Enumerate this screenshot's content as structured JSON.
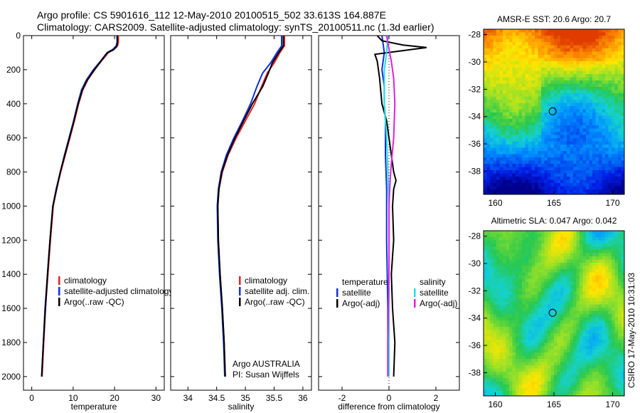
{
  "header": {
    "title_line1": "Argo profile: CS 5901616_112 12-May-2010 20100515_502 33.613S 164.887E",
    "title_line2": "Climatology: CARS2009. Satellite-adjusted climatology: synTS_20100511.nc (1.3d earlier)"
  },
  "side_label": "CSIRO 17-May-2010 10:31:03",
  "colors": {
    "climatology": "#e82020",
    "satellite": "#1030e0",
    "argo": "#000000",
    "salinity_satellite": "#20e0e0",
    "salinity_argo": "#e020e0"
  },
  "chart_data": [
    {
      "type": "line",
      "xlabel": "temperature",
      "xlim": [
        -2,
        32
      ],
      "xticks": [
        0,
        10,
        20,
        30
      ],
      "ylim": [
        2080,
        0
      ],
      "yticks": [
        0,
        200,
        400,
        600,
        800,
        1000,
        1200,
        1400,
        1600,
        1800,
        2000
      ],
      "legend": {
        "placement": "lower-left",
        "entries": [
          "climatology",
          "satellite-adjusted climatology",
          "Argo(..raw -QC)"
        ]
      },
      "series": [
        {
          "name": "climatology",
          "color": "#e82020",
          "points": [
            [
              20.9,
              0
            ],
            [
              20.9,
              40
            ],
            [
              20.7,
              60
            ],
            [
              19.9,
              80
            ],
            [
              18.5,
              100
            ],
            [
              16.8,
              150
            ],
            [
              15.2,
              200
            ],
            [
              13.5,
              260
            ],
            [
              12.3,
              320
            ],
            [
              11.3,
              400
            ],
            [
              10.3,
              500
            ],
            [
              9.2,
              600
            ],
            [
              8.1,
              700
            ],
            [
              7.0,
              800
            ],
            [
              6.0,
              900
            ],
            [
              5.2,
              1000
            ],
            [
              4.5,
              1200
            ],
            [
              3.9,
              1400
            ],
            [
              3.3,
              1600
            ],
            [
              2.9,
              1800
            ],
            [
              2.5,
              2000
            ]
          ]
        },
        {
          "name": "satellite-adjusted climatology",
          "color": "#1030e0",
          "points": [
            [
              20.6,
              0
            ],
            [
              20.6,
              40
            ],
            [
              20.4,
              60
            ],
            [
              19.6,
              80
            ],
            [
              18.2,
              100
            ],
            [
              16.6,
              150
            ],
            [
              14.9,
              200
            ],
            [
              13.2,
              260
            ],
            [
              12.0,
              320
            ],
            [
              11.1,
              400
            ],
            [
              10.1,
              500
            ],
            [
              9.0,
              600
            ],
            [
              7.9,
              700
            ],
            [
              6.9,
              800
            ],
            [
              5.9,
              900
            ],
            [
              5.1,
              1000
            ],
            [
              4.4,
              1200
            ],
            [
              3.8,
              1400
            ],
            [
              3.2,
              1600
            ],
            [
              2.8,
              1800
            ],
            [
              2.4,
              2000
            ]
          ]
        },
        {
          "name": "Argo(..raw -QC)",
          "color": "#000000",
          "points": [
            [
              20.7,
              0
            ],
            [
              20.7,
              40
            ],
            [
              20.5,
              65
            ],
            [
              19.6,
              85
            ],
            [
              18.3,
              100
            ],
            [
              16.7,
              150
            ],
            [
              15.1,
              200
            ],
            [
              13.4,
              260
            ],
            [
              12.2,
              320
            ],
            [
              11.2,
              400
            ],
            [
              10.2,
              500
            ],
            [
              9.1,
              600
            ],
            [
              8.0,
              700
            ],
            [
              6.9,
              800
            ],
            [
              6.0,
              900
            ],
            [
              5.1,
              1000
            ],
            [
              4.4,
              1200
            ],
            [
              3.8,
              1400
            ],
            [
              3.3,
              1600
            ],
            [
              2.8,
              1800
            ],
            [
              2.4,
              2000
            ]
          ]
        }
      ]
    },
    {
      "type": "line",
      "xlabel": "salinity",
      "xlim": [
        33.7,
        36.15
      ],
      "xticks": [
        34,
        34.5,
        35,
        35.5,
        36
      ],
      "ylim": [
        2080,
        0
      ],
      "legend": {
        "placement": "lower-right",
        "entries": [
          "climatology",
          "satellite adj. clim.",
          "Argo(..raw -QC)"
        ]
      },
      "annotation": [
        "Argo AUSTRALIA",
        "PI: Susan Wijffels"
      ],
      "series": [
        {
          "name": "climatology",
          "color": "#e82020",
          "points": [
            [
              35.68,
              0
            ],
            [
              35.68,
              60
            ],
            [
              35.6,
              100
            ],
            [
              35.5,
              160
            ],
            [
              35.38,
              220
            ],
            [
              35.28,
              300
            ],
            [
              35.16,
              400
            ],
            [
              35.0,
              500
            ],
            [
              34.84,
              600
            ],
            [
              34.7,
              700
            ],
            [
              34.6,
              800
            ],
            [
              34.54,
              900
            ],
            [
              34.52,
              1000
            ],
            [
              34.53,
              1200
            ],
            [
              34.56,
              1400
            ],
            [
              34.6,
              1600
            ],
            [
              34.63,
              1800
            ],
            [
              34.65,
              2000
            ]
          ]
        },
        {
          "name": "satellite adj. clim.",
          "color": "#1030e0",
          "points": [
            [
              35.63,
              0
            ],
            [
              35.63,
              60
            ],
            [
              35.55,
              100
            ],
            [
              35.44,
              160
            ],
            [
              35.3,
              220
            ],
            [
              35.2,
              300
            ],
            [
              35.09,
              400
            ],
            [
              34.95,
              500
            ],
            [
              34.8,
              600
            ],
            [
              34.67,
              700
            ],
            [
              34.58,
              800
            ],
            [
              34.53,
              900
            ],
            [
              34.51,
              1000
            ],
            [
              34.52,
              1200
            ],
            [
              34.55,
              1400
            ],
            [
              34.59,
              1600
            ],
            [
              34.62,
              1800
            ],
            [
              34.64,
              2000
            ]
          ]
        },
        {
          "name": "Argo(..raw -QC)",
          "color": "#000000",
          "points": [
            [
              35.66,
              0
            ],
            [
              35.66,
              60
            ],
            [
              35.58,
              100
            ],
            [
              35.47,
              160
            ],
            [
              35.4,
              220
            ],
            [
              35.3,
              300
            ],
            [
              35.12,
              400
            ],
            [
              34.97,
              500
            ],
            [
              34.82,
              600
            ],
            [
              34.69,
              700
            ],
            [
              34.59,
              800
            ],
            [
              34.54,
              900
            ],
            [
              34.52,
              1000
            ],
            [
              34.53,
              1200
            ],
            [
              34.56,
              1400
            ],
            [
              34.6,
              1600
            ],
            [
              34.63,
              1800
            ],
            [
              34.65,
              2000
            ]
          ]
        }
      ]
    },
    {
      "type": "line",
      "xlabel": "difference from climatology",
      "xlim": [
        -3.0,
        3.0
      ],
      "xticks": [
        -2,
        0,
        2
      ],
      "ylim": [
        2080,
        0
      ],
      "legend": {
        "placement": "lower-center",
        "groups": [
          {
            "heading": "temperature",
            "entries": [
              "satellite",
              "Argo(-adj)"
            ]
          },
          {
            "heading": "salinity",
            "entries": [
              "satellite",
              "Argo(-adj)"
            ]
          }
        ]
      },
      "series": [
        {
          "name": "temperature satellite",
          "color": "#1030e0",
          "points": [
            [
              -0.3,
              0
            ],
            [
              -0.25,
              50
            ],
            [
              -0.2,
              100
            ],
            [
              -0.3,
              200
            ],
            [
              -0.2,
              300
            ],
            [
              -0.2,
              400
            ],
            [
              -0.15,
              500
            ],
            [
              -0.15,
              700
            ],
            [
              -0.1,
              900
            ],
            [
              -0.1,
              1200
            ],
            [
              -0.05,
              1600
            ],
            [
              -0.05,
              2000
            ]
          ]
        },
        {
          "name": "temperature Argo(-adj)",
          "color": "#000000",
          "points": [
            [
              -0.5,
              0
            ],
            [
              -0.3,
              30
            ],
            [
              0.6,
              55
            ],
            [
              1.6,
              70
            ],
            [
              0.5,
              90
            ],
            [
              -0.6,
              110
            ],
            [
              -0.5,
              150
            ],
            [
              -0.4,
              250
            ],
            [
              -0.3,
              400
            ],
            [
              -0.1,
              500
            ],
            [
              0.0,
              600
            ],
            [
              0.1,
              700
            ],
            [
              0.2,
              800
            ],
            [
              0.3,
              850
            ],
            [
              0.2,
              900
            ],
            [
              0.15,
              1000
            ],
            [
              0.2,
              1200
            ],
            [
              0.1,
              1400
            ],
            [
              0.15,
              1600
            ],
            [
              0.25,
              1800
            ],
            [
              0.2,
              2000
            ]
          ]
        },
        {
          "name": "salinity satellite",
          "color": "#20e0e0",
          "points": [
            [
              -0.05,
              0
            ],
            [
              -0.1,
              100
            ],
            [
              -0.2,
              200
            ],
            [
              -0.2,
              400
            ],
            [
              -0.1,
              600
            ],
            [
              -0.05,
              800
            ],
            [
              0.0,
              1000
            ],
            [
              0.0,
              1400
            ],
            [
              0.0,
              2000
            ]
          ]
        },
        {
          "name": "salinity Argo(-adj)",
          "color": "#e020e0",
          "points": [
            [
              -0.1,
              0
            ],
            [
              0.0,
              80
            ],
            [
              0.1,
              150
            ],
            [
              0.2,
              250
            ],
            [
              0.25,
              400
            ],
            [
              0.2,
              600
            ],
            [
              0.1,
              750
            ],
            [
              0.05,
              850
            ],
            [
              0.0,
              1000
            ],
            [
              0.0,
              1400
            ],
            [
              -0.05,
              1800
            ],
            [
              -0.05,
              2000
            ]
          ]
        }
      ]
    },
    {
      "type": "heatmap",
      "title": "AMSR-E SST: 20.6  Argo: 20.7",
      "xticks": [
        160,
        165,
        170
      ],
      "yticks": [
        -28,
        -30,
        -32,
        -34,
        -36,
        -38
      ],
      "xlim": [
        159,
        171
      ],
      "ylim": [
        -39.7,
        -27.6
      ],
      "marker": {
        "lon": 164.887,
        "lat": -33.613
      }
    },
    {
      "type": "heatmap",
      "title": "Altimetric SLA: 0.047  Argo: 0.042",
      "xticks": [
        160,
        165,
        170
      ],
      "yticks": [
        -28,
        -30,
        -32,
        -34,
        -36,
        -38
      ],
      "xlim": [
        159,
        171
      ],
      "ylim": [
        -39.7,
        -27.6
      ],
      "marker": {
        "lon": 164.887,
        "lat": -33.613
      }
    }
  ]
}
